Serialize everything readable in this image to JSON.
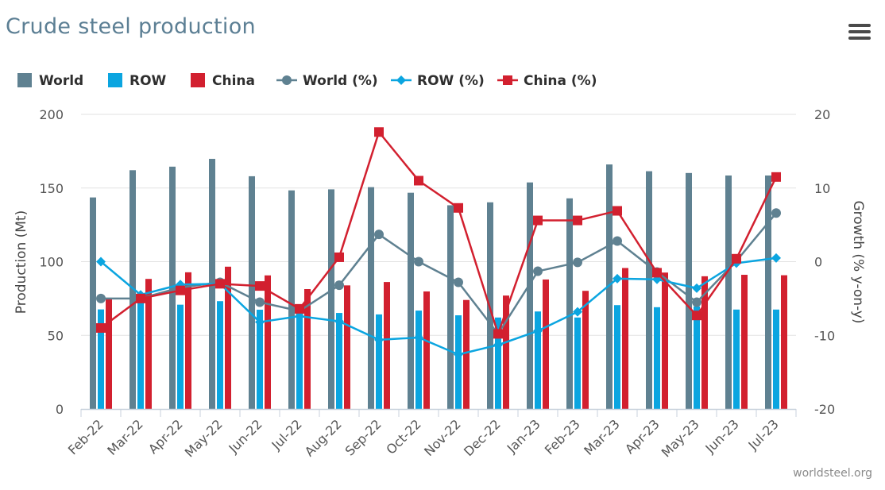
{
  "title": "Crude steel production",
  "credit": "worldsteel.org",
  "menu_icon": "hamburger-menu-icon",
  "colors": {
    "world": "#5f8191",
    "row": "#0ba5e0",
    "china": "#d2202f",
    "grid": "#e2e2e2"
  },
  "chart_data": {
    "type": "bar",
    "title": "Crude steel production",
    "categories": [
      "Feb-22",
      "Mar-22",
      "Apr-22",
      "May-22",
      "Jun-22",
      "Jul-22",
      "Aug-22",
      "Sep-22",
      "Oct-22",
      "Nov-22",
      "Dec-22",
      "Jan-23",
      "Feb-23",
      "Mar-23",
      "Apr-23",
      "May-23",
      "Jun-23",
      "Jul-23"
    ],
    "ylabel": "Production (Mt)",
    "y2label": "Growth (% y-on-y)",
    "ylim": [
      0,
      200
    ],
    "y2lim": [
      -20,
      20
    ],
    "yticks": [
      0,
      50,
      100,
      150,
      200
    ],
    "y2ticks": [
      -20,
      -10,
      0,
      10,
      20
    ],
    "legend_position": "top-left",
    "grid": true,
    "series": [
      {
        "name": "World",
        "kind": "bar",
        "axis": "left",
        "values": [
          143.6,
          162.1,
          164.5,
          169.8,
          158.0,
          148.4,
          149.1,
          150.6,
          146.8,
          138.3,
          140.3,
          153.8,
          143.0,
          166.0,
          161.4,
          160.2,
          158.5,
          158.5
        ]
      },
      {
        "name": "ROW",
        "kind": "bar",
        "axis": "left",
        "values": [
          67.6,
          74.4,
          70.8,
          73.2,
          67.4,
          67.7,
          65.2,
          64.2,
          66.8,
          63.6,
          62.1,
          66.2,
          62.1,
          70.5,
          69.1,
          69.6,
          67.5,
          67.5
        ]
      },
      {
        "name": "China",
        "kind": "bar",
        "axis": "left",
        "values": [
          75.2,
          88.3,
          92.8,
          96.6,
          90.7,
          81.4,
          83.9,
          86.2,
          79.8,
          74.0,
          77.0,
          87.9,
          80.2,
          95.7,
          92.6,
          90.1,
          91.1,
          90.8
        ]
      },
      {
        "name": "World (%)",
        "kind": "line",
        "axis": "right",
        "values": [
          -5.0,
          -5.0,
          -3.5,
          -2.8,
          -5.5,
          -6.7,
          -3.2,
          3.7,
          0.0,
          -2.8,
          -9.8,
          -1.3,
          -0.1,
          2.8,
          -1.4,
          -5.5,
          0.1,
          6.6
        ]
      },
      {
        "name": "ROW (%)",
        "kind": "line",
        "axis": "right",
        "values": [
          0.0,
          -4.5,
          -3.1,
          -3.0,
          -8.2,
          -7.4,
          -8.1,
          -10.6,
          -10.3,
          -12.6,
          -11.3,
          -9.4,
          -6.8,
          -2.3,
          -2.4,
          -3.6,
          -0.2,
          0.5
        ]
      },
      {
        "name": "China (%)",
        "kind": "line",
        "axis": "right",
        "values": [
          -9.0,
          -5.0,
          -3.9,
          -3.0,
          -3.3,
          -6.4,
          0.6,
          17.6,
          11.0,
          7.3,
          -9.8,
          5.6,
          5.6,
          6.9,
          -1.5,
          -7.3,
          0.4,
          11.5
        ]
      }
    ]
  }
}
